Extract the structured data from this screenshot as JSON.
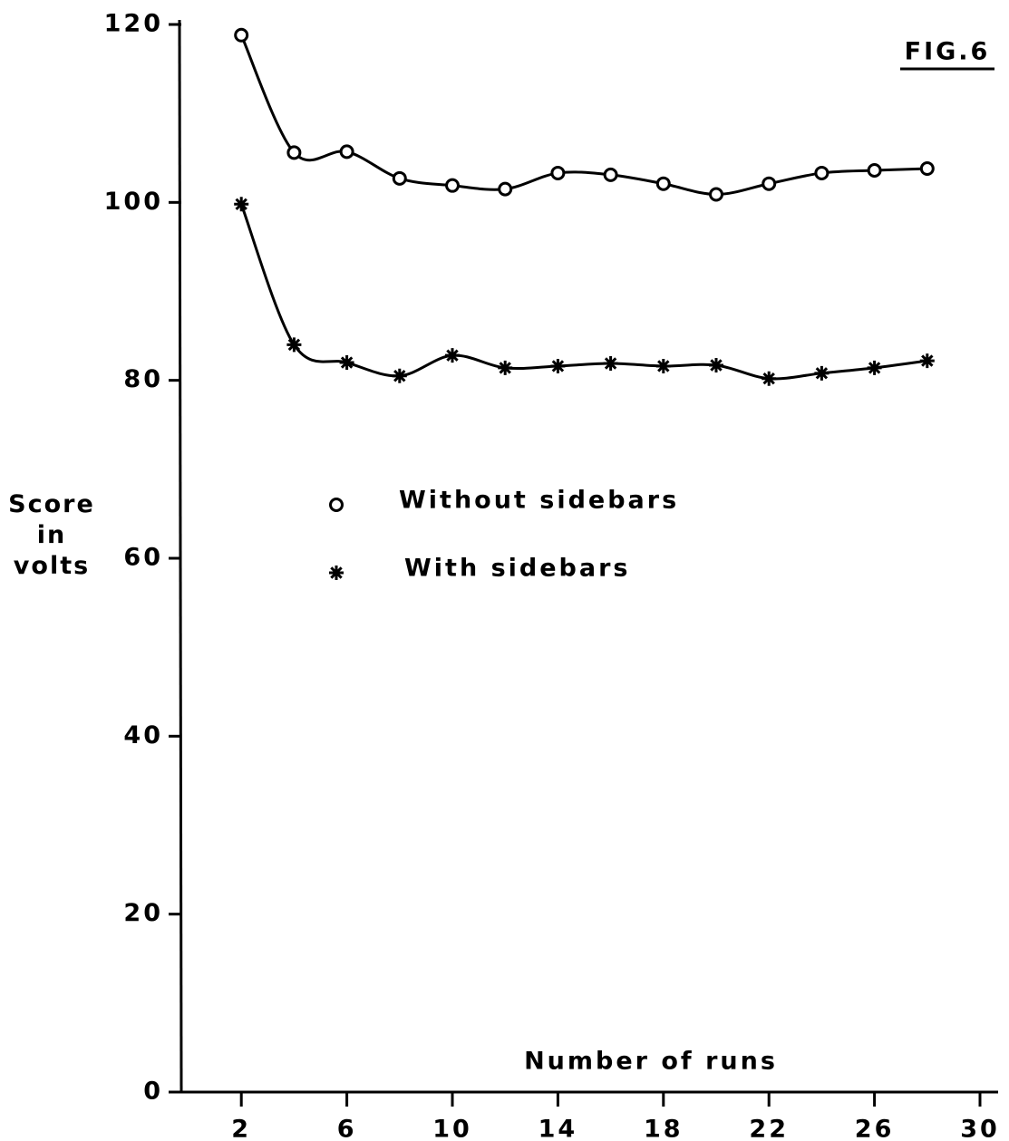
{
  "chart_data": {
    "type": "line",
    "title": "FIG.6",
    "xlabel": "Number of runs",
    "ylabel": "Score in volts",
    "x": [
      2,
      4,
      6,
      8,
      10,
      12,
      14,
      16,
      18,
      20,
      22,
      24,
      26,
      28
    ],
    "series": [
      {
        "name": "Without sidebars",
        "marker": "circle",
        "color": "#000",
        "values": [
          118.8,
          105.6,
          105.7,
          102.7,
          101.9,
          101.5,
          103.3,
          103.1,
          102.1,
          100.9,
          102.1,
          103.3,
          103.6,
          103.8
        ]
      },
      {
        "name": "With sidebars",
        "marker": "asterisk",
        "color": "#000",
        "values": [
          99.8,
          84.0,
          82.0,
          80.5,
          82.8,
          81.4,
          81.6,
          81.9,
          81.6,
          81.7,
          80.2,
          80.8,
          81.4,
          82.2
        ]
      }
    ],
    "xlim": [
      0,
      30
    ],
    "xticks": [
      2,
      6,
      10,
      14,
      18,
      22,
      26,
      30
    ],
    "ylim": [
      0,
      120
    ],
    "yticks": [
      0,
      20,
      40,
      60,
      80,
      100,
      120
    ],
    "grid": false
  }
}
